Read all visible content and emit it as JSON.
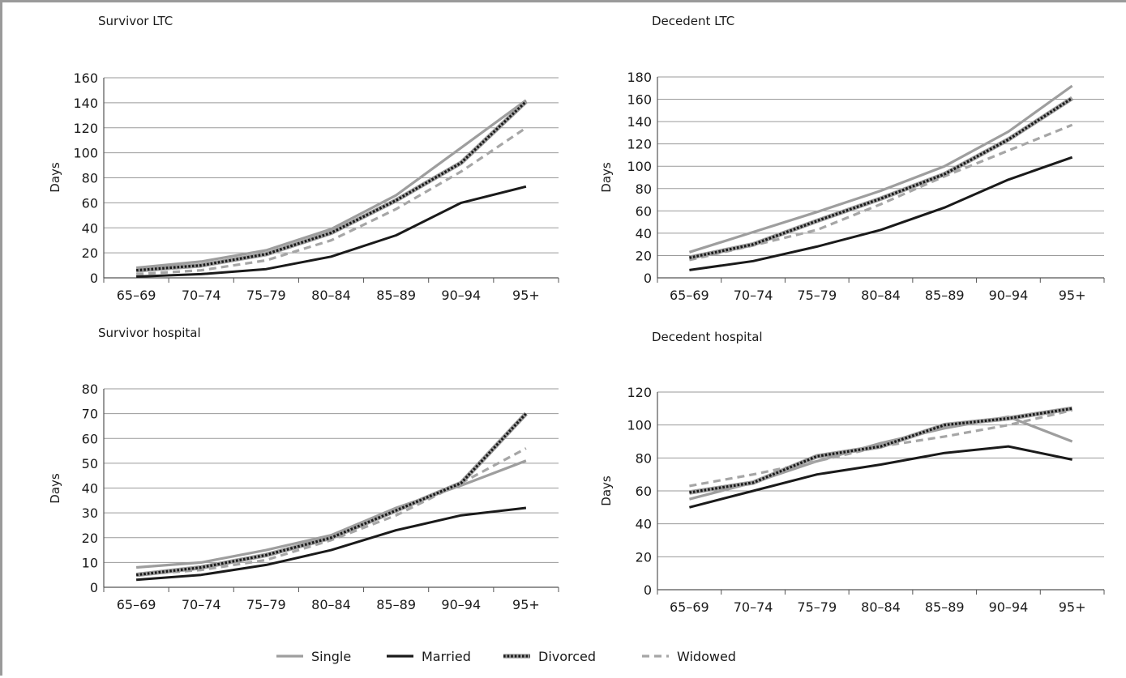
{
  "legend": {
    "entries": [
      {
        "key": "single",
        "label": "Single"
      },
      {
        "key": "married",
        "label": "Married"
      },
      {
        "key": "divorced",
        "label": "Divorced"
      },
      {
        "key": "widowed",
        "label": "Widowed"
      }
    ],
    "placement": "bottom-center"
  },
  "series_styles": {
    "single": {
      "color": "#9e9e9e",
      "dash": "solid"
    },
    "married": {
      "color": "#1a1a1a",
      "dash": "solid"
    },
    "divorced": {
      "color": "#1a1a1a",
      "dash": "dotted",
      "halo": "#9e9e9e"
    },
    "widowed": {
      "color": "#a6a6a6",
      "dash": "dashed"
    }
  },
  "chart_data": [
    {
      "type": "line",
      "title": "Survivor LTC",
      "ylabel": "Days",
      "categories": [
        "65–69",
        "70–74",
        "75–79",
        "80–84",
        "85–89",
        "90–94",
        "95+"
      ],
      "ylim": [
        0,
        160
      ],
      "yticks": [
        0,
        20,
        40,
        60,
        80,
        100,
        120,
        140,
        160
      ],
      "grid": true,
      "series": [
        {
          "key": "single",
          "name": "Single",
          "values": [
            8,
            13,
            22,
            39,
            66,
            104,
            142
          ]
        },
        {
          "key": "married",
          "name": "Married",
          "values": [
            1,
            3,
            7,
            17,
            34,
            60,
            73
          ]
        },
        {
          "key": "divorced",
          "name": "Divorced",
          "values": [
            6,
            10,
            19,
            36,
            62,
            92,
            141
          ]
        },
        {
          "key": "widowed",
          "name": "Widowed",
          "values": [
            3,
            6,
            14,
            30,
            55,
            85,
            120
          ]
        }
      ]
    },
    {
      "type": "line",
      "title": "Decedent LTC",
      "ylabel": "Days",
      "categories": [
        "65–69",
        "70–74",
        "75–79",
        "80–84",
        "85–89",
        "90–94",
        "95+"
      ],
      "ylim": [
        0,
        180
      ],
      "yticks": [
        0,
        20,
        40,
        60,
        80,
        100,
        120,
        140,
        160,
        180
      ],
      "grid": true,
      "series": [
        {
          "key": "single",
          "name": "Single",
          "values": [
            23,
            41,
            59,
            78,
            100,
            131,
            172
          ]
        },
        {
          "key": "married",
          "name": "Married",
          "values": [
            7,
            15,
            28,
            43,
            63,
            88,
            108
          ]
        },
        {
          "key": "divorced",
          "name": "Divorced",
          "values": [
            18,
            30,
            51,
            71,
            93,
            124,
            161
          ]
        },
        {
          "key": "widowed",
          "name": "Widowed",
          "values": [
            16,
            29,
            43,
            66,
            91,
            114,
            137
          ]
        }
      ]
    },
    {
      "type": "line",
      "title": "Survivor hospital",
      "ylabel": "Days",
      "categories": [
        "65–69",
        "70–74",
        "75–79",
        "80–84",
        "85–89",
        "90–94",
        "95+"
      ],
      "ylim": [
        0,
        80
      ],
      "yticks": [
        0,
        10,
        20,
        30,
        40,
        50,
        60,
        70,
        80
      ],
      "grid": true,
      "series": [
        {
          "key": "single",
          "name": "Single",
          "values": [
            8,
            10,
            15,
            21,
            32,
            41,
            51
          ]
        },
        {
          "key": "married",
          "name": "Married",
          "values": [
            3,
            5,
            9,
            15,
            23,
            29,
            32
          ]
        },
        {
          "key": "divorced",
          "name": "Divorced",
          "values": [
            5,
            8,
            13,
            20,
            31,
            42,
            70
          ]
        },
        {
          "key": "widowed",
          "name": "Widowed",
          "values": [
            5,
            7,
            11,
            19,
            29,
            42,
            56
          ]
        }
      ]
    },
    {
      "type": "line",
      "title": "Decedent hospital",
      "ylabel": "Days",
      "categories": [
        "65–69",
        "70–74",
        "75–79",
        "80–84",
        "85–89",
        "90–94",
        "95+"
      ],
      "ylim": [
        0,
        120
      ],
      "yticks": [
        0,
        20,
        40,
        60,
        80,
        100,
        120
      ],
      "grid": true,
      "series": [
        {
          "key": "single",
          "name": "Single",
          "values": [
            55,
            65,
            78,
            89,
            98,
            105,
            90
          ]
        },
        {
          "key": "married",
          "name": "Married",
          "values": [
            50,
            60,
            70,
            76,
            83,
            87,
            79
          ]
        },
        {
          "key": "divorced",
          "name": "Divorced",
          "values": [
            59,
            65,
            81,
            87,
            100,
            104,
            110
          ]
        },
        {
          "key": "widowed",
          "name": "Widowed",
          "values": [
            63,
            70,
            78,
            87,
            93,
            100,
            109
          ]
        }
      ]
    }
  ]
}
